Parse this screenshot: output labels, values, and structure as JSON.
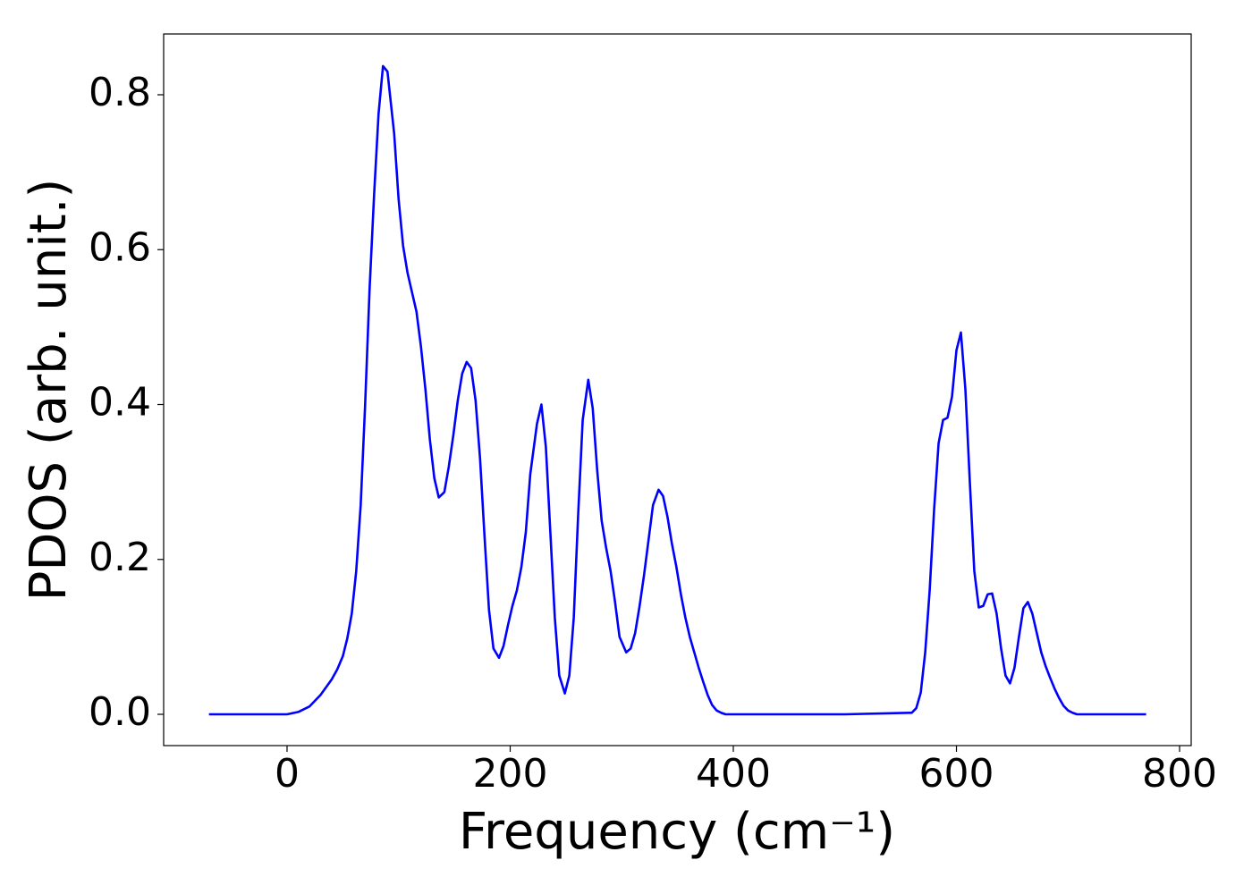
{
  "chart_data": {
    "type": "line",
    "xlabel": "Frequency (cm⁻¹)",
    "ylabel": "PDOS (arb. unit.)",
    "x": [
      -70,
      -60,
      -50,
      -40,
      -30,
      -20,
      -10,
      0,
      10,
      20,
      30,
      40,
      45,
      50,
      54,
      58,
      62,
      66,
      70,
      74,
      78,
      82,
      86,
      90,
      96,
      100,
      104,
      108,
      112,
      116,
      120,
      124,
      128,
      132,
      136,
      141,
      145,
      149,
      153,
      157,
      161,
      165,
      169,
      173,
      177,
      181,
      185,
      190,
      194,
      198,
      202,
      206,
      210,
      214,
      218,
      224,
      228,
      232,
      236,
      240,
      244,
      249,
      253,
      257,
      261,
      265,
      270,
      274,
      278,
      282,
      286,
      290,
      294,
      298,
      304,
      308,
      312,
      316,
      320,
      324,
      328,
      333,
      337,
      341,
      345,
      349,
      353,
      357,
      361,
      365,
      369,
      373,
      377,
      381,
      385,
      389,
      393,
      450,
      500,
      560,
      564,
      568,
      572,
      576,
      580,
      584,
      588,
      592,
      596,
      600,
      604,
      608,
      612,
      616,
      620,
      624,
      628,
      632,
      636,
      640,
      644,
      648,
      652,
      656,
      660,
      664,
      668,
      672,
      676,
      680,
      684,
      688,
      692,
      696,
      700,
      704,
      708,
      770
    ],
    "series": [
      {
        "name": "PDOS",
        "color": "#0000ff",
        "values": [
          0,
          0,
          0,
          0,
          0,
          0,
          0,
          0,
          0.003,
          0.01,
          0.025,
          0.045,
          0.058,
          0.075,
          0.098,
          0.13,
          0.185,
          0.27,
          0.4,
          0.55,
          0.67,
          0.775,
          0.837,
          0.83,
          0.75,
          0.665,
          0.605,
          0.57,
          0.545,
          0.52,
          0.475,
          0.42,
          0.355,
          0.305,
          0.28,
          0.287,
          0.32,
          0.36,
          0.405,
          0.44,
          0.455,
          0.447,
          0.405,
          0.33,
          0.23,
          0.135,
          0.085,
          0.073,
          0.088,
          0.115,
          0.14,
          0.16,
          0.19,
          0.235,
          0.31,
          0.375,
          0.4,
          0.345,
          0.235,
          0.125,
          0.05,
          0.027,
          0.05,
          0.125,
          0.26,
          0.38,
          0.432,
          0.395,
          0.315,
          0.25,
          0.215,
          0.185,
          0.145,
          0.1,
          0.08,
          0.085,
          0.105,
          0.14,
          0.18,
          0.225,
          0.27,
          0.29,
          0.282,
          0.255,
          0.22,
          0.19,
          0.155,
          0.125,
          0.1,
          0.08,
          0.06,
          0.042,
          0.025,
          0.012,
          0.005,
          0.002,
          0,
          0,
          0,
          0.002,
          0.008,
          0.028,
          0.08,
          0.16,
          0.265,
          0.35,
          0.38,
          0.383,
          0.41,
          0.47,
          0.493,
          0.42,
          0.3,
          0.185,
          0.138,
          0.14,
          0.155,
          0.156,
          0.13,
          0.085,
          0.05,
          0.04,
          0.06,
          0.1,
          0.137,
          0.145,
          0.13,
          0.105,
          0.08,
          0.062,
          0.047,
          0.033,
          0.021,
          0.011,
          0.005,
          0.002,
          0,
          0
        ]
      }
    ],
    "xlim": [
      -110.6,
      810.4
    ],
    "ylim": [
      -0.0404,
      0.8785
    ],
    "xticks": [
      0,
      200,
      400,
      600,
      800
    ],
    "yticks": [
      {
        "value": 0,
        "label": "0.0"
      },
      0.2,
      0.4,
      0.6,
      0.8
    ],
    "grid": false
  }
}
